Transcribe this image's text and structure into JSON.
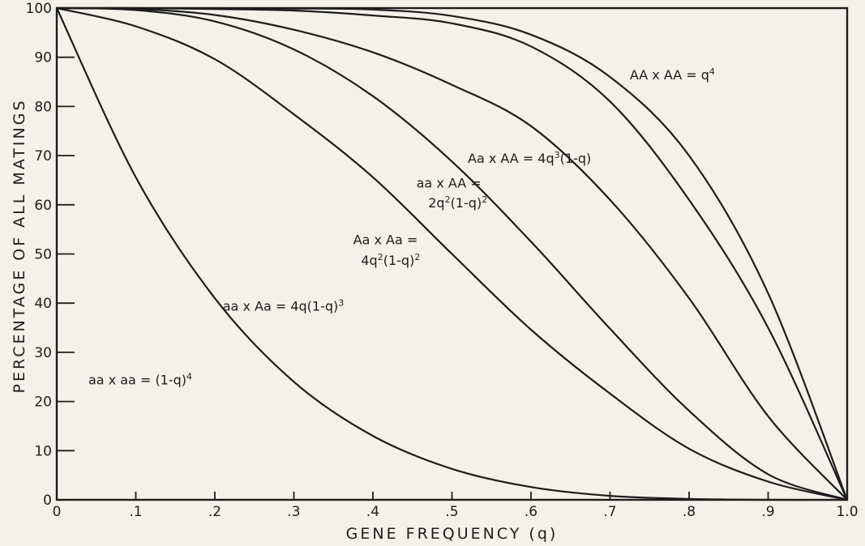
{
  "chart_data": {
    "type": "line",
    "title": "",
    "xlabel": "GENE FREQUENCY (q)",
    "ylabel": "PERCENTAGE OF ALL MATINGS",
    "xlim": [
      0,
      1.0
    ],
    "ylim": [
      0,
      100
    ],
    "grid": false,
    "x_tick_labels": [
      "0",
      ".1",
      ".2",
      ".3",
      ".4",
      ".5",
      ".6",
      ".7",
      ".8",
      ".9",
      "1.0"
    ],
    "y_tick_labels": [
      "0",
      "10",
      "20",
      "30",
      "40",
      "50",
      "60",
      "70",
      "80",
      "90",
      "100"
    ],
    "x": [
      0,
      0.1,
      0.2,
      0.3,
      0.4,
      0.5,
      0.6,
      0.7,
      0.8,
      0.9,
      1.0
    ],
    "series": [
      {
        "name": "aa x aa = (1-q)^4",
        "values": [
          100,
          65.6,
          41.0,
          24.0,
          13.0,
          6.3,
          2.6,
          0.8,
          0.2,
          0.0,
          0
        ]
      },
      {
        "name": "aa x Aa = 4q(1-q)^3",
        "values": [
          100,
          96.3,
          89.6,
          78.4,
          65.6,
          50.0,
          34.6,
          21.6,
          10.4,
          3.7,
          0
        ]
      },
      {
        "name": "Aa x Aa = 4q^2(1-q)^2",
        "values": [
          100,
          99.6,
          97.3,
          91.6,
          82.1,
          68.8,
          52.5,
          34.8,
          18.1,
          5.2,
          0
        ]
      },
      {
        "name": "aa x AA = 2q^2(1-q)^2",
        "values": [
          100,
          99.8,
          98.6,
          95.6,
          91.0,
          84.4,
          76.0,
          61.0,
          41.0,
          17.0,
          0
        ]
      },
      {
        "name": "Aa x AA = 4q^3(1-q)",
        "values": [
          100,
          100,
          99.8,
          99.5,
          98.5,
          96.9,
          92.2,
          81.0,
          61.0,
          35.0,
          0
        ]
      },
      {
        "name": "AA x AA = q^4",
        "values": [
          100,
          100,
          100,
          99.9,
          99.7,
          98.4,
          94.6,
          86.0,
          70.0,
          42.0,
          0
        ]
      }
    ],
    "annotations": [
      {
        "text": "AA x AA = q",
        "sup": "4",
        "q": 0.725,
        "pct": 85.5
      },
      {
        "text": "Aa x AA = 4q",
        "sup": "3",
        "tail": "(1-q)",
        "q": 0.52,
        "pct": 68.5
      },
      {
        "text": "aa x AA =",
        "q": 0.455,
        "pct": 63.5
      },
      {
        "text": "2q",
        "sup": "2",
        "tail": "(1-q)",
        "sup2": "2",
        "q": 0.47,
        "pct": 59.5
      },
      {
        "text": "Aa x Aa =",
        "q": 0.375,
        "pct": 52.0
      },
      {
        "text": "4q",
        "sup": "2",
        "tail": "(1-q)",
        "sup2": "2",
        "q": 0.385,
        "pct": 47.8
      },
      {
        "text": "aa x Aa = 4q(1-q)",
        "sup": "3",
        "q": 0.21,
        "pct": 38.5
      },
      {
        "text": "aa x aa = (1-q)",
        "sup": "4",
        "q": 0.04,
        "pct": 23.5
      }
    ]
  }
}
